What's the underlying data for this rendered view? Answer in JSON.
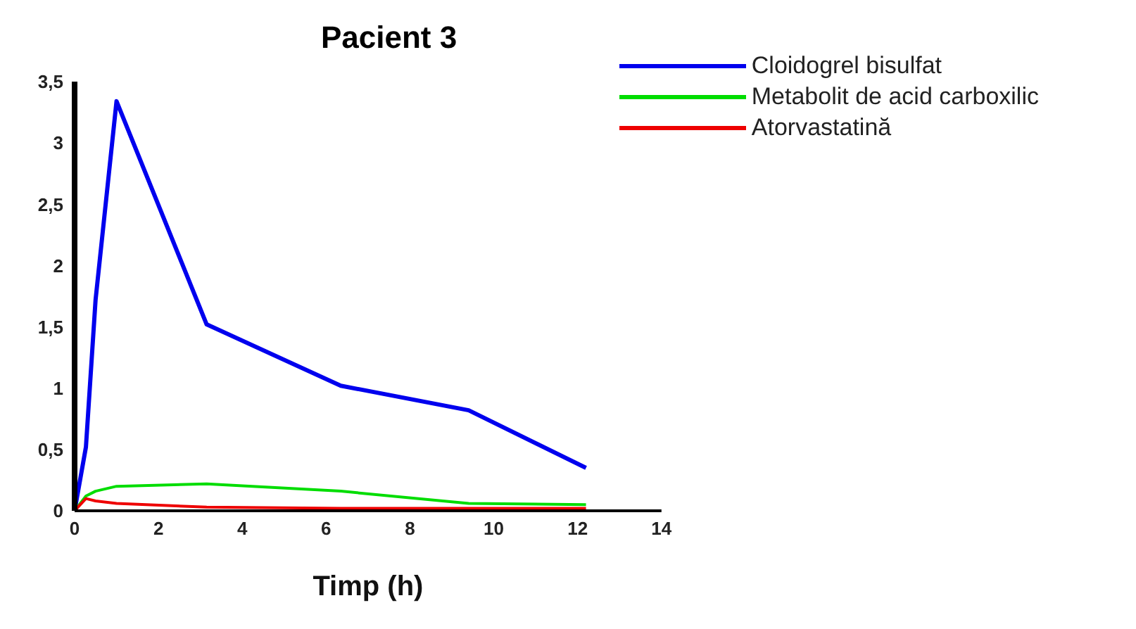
{
  "chart_data": {
    "type": "line",
    "title": "Pacient 3",
    "xlabel": "Timp (h)",
    "x": [
      0,
      0.27,
      0.5,
      1,
      3.15,
      6.35,
      9.4,
      12.2
    ],
    "series": [
      {
        "name": "Cloidogrel bisulfat",
        "color": "#0000ee",
        "values": [
          0,
          0.52,
          1.72,
          3.34,
          1.52,
          1.02,
          0.82,
          0.35
        ]
      },
      {
        "name": "Metabolit de acid carboxilic",
        "color": "#00dd00",
        "values": [
          0,
          0.12,
          0.16,
          0.2,
          0.22,
          0.16,
          0.06,
          0.05
        ]
      },
      {
        "name": "Atorvastatină",
        "color": "#ee0000",
        "values": [
          0,
          0.1,
          0.08,
          0.06,
          0.03,
          0.02,
          0.02,
          0.02
        ]
      }
    ],
    "xlim": [
      0,
      14
    ],
    "xticks": [
      0,
      2,
      4,
      6,
      8,
      10,
      12,
      14
    ],
    "ylim": [
      0,
      3.5
    ],
    "yticks": [
      0,
      {
        "value": 0.5,
        "label": "0,5"
      },
      1,
      {
        "value": 1.5,
        "label": "1,5"
      },
      2,
      {
        "value": 2.5,
        "label": "2,5"
      },
      3,
      {
        "value": 3.5,
        "label": "3,5"
      }
    ],
    "grid": false,
    "legend": "top right",
    "marker": "none",
    "line_style": "solid"
  }
}
